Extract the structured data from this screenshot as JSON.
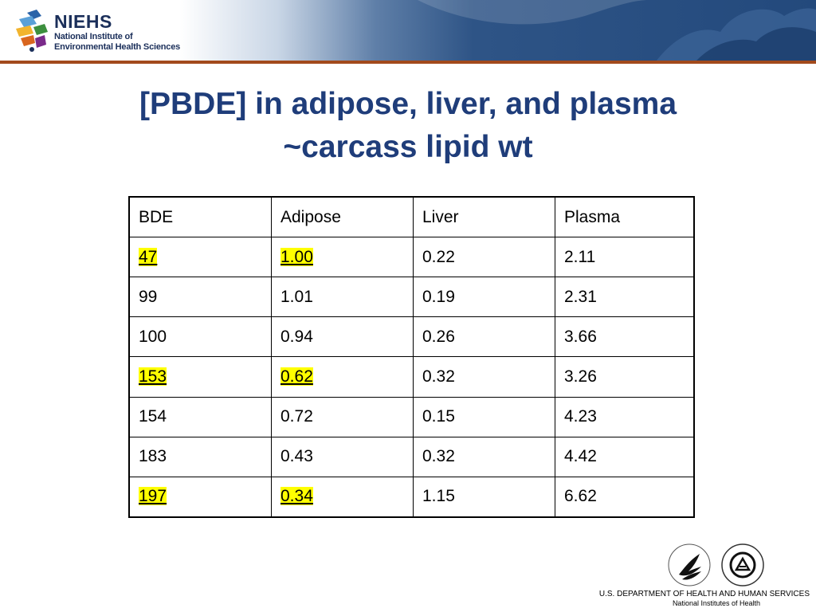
{
  "header": {
    "logo_acronym": "NIEHS",
    "logo_line1": "National Institute of",
    "logo_line2": "Environmental Health Sciences"
  },
  "title": {
    "line1": "[PBDE] in adipose, liver, and plasma",
    "line2": "~carcass lipid wt"
  },
  "table": {
    "headers": [
      "BDE",
      "Adipose",
      "Liver",
      "Plasma"
    ],
    "rows": [
      [
        "47",
        "1.00",
        "0.22",
        "2.11"
      ],
      [
        "99",
        "1.01",
        "0.19",
        "2.31"
      ],
      [
        "100",
        "0.94",
        "0.26",
        "3.66"
      ],
      [
        "153",
        "0.62",
        "0.32",
        "3.26"
      ],
      [
        "154",
        "0.72",
        "0.15",
        "4.23"
      ],
      [
        "183",
        "0.43",
        "0.32",
        "4.42"
      ],
      [
        "197",
        "0.34",
        "1.15",
        "6.62"
      ]
    ],
    "highlighted_rows": [
      0,
      3,
      6
    ]
  },
  "footer": {
    "seal_hhs_icon": "hhs-eagle-seal-icon",
    "seal_nih_icon": "national-institutes-of-health-seal-icon",
    "seal_nih_text": "NATIONAL INSTITUTES OF HEALTH",
    "department": "U.S. DEPARTMENT OF HEALTH AND HUMAN SERVICES",
    "agency": "National Institutes of Health"
  },
  "colors": {
    "title": "#1f3d7a",
    "banner_dark": "#23497c",
    "banner_rule": "#a24a1c",
    "highlight": "#ffff00"
  }
}
